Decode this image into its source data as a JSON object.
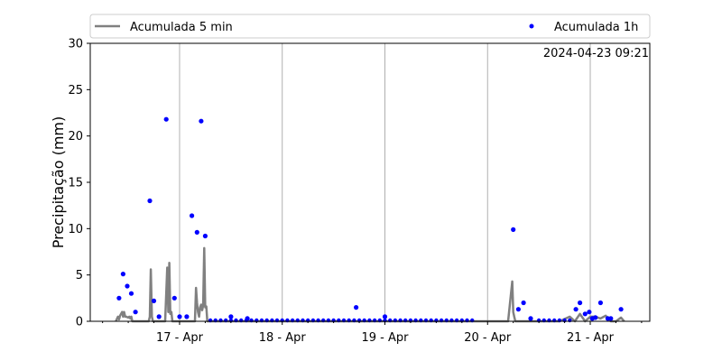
{
  "chart_data": {
    "type": "line",
    "ylabel": "Precipitação (mm)",
    "ylim": [
      0,
      30
    ],
    "yticks": [
      0,
      5,
      10,
      15,
      20,
      25,
      30
    ],
    "xlim": [
      -0.87,
      4.58
    ],
    "xticks": [
      {
        "value": 0,
        "label": "17 - Apr"
      },
      {
        "value": 1,
        "label": "18 - Apr"
      },
      {
        "value": 2,
        "label": "19 - Apr"
      },
      {
        "value": 3,
        "label": "20 - Apr"
      },
      {
        "value": 4,
        "label": "21 - Apr"
      }
    ],
    "grid": "x-major",
    "annotation": "2024-04-23 09:21",
    "legend_position": "top",
    "series": [
      {
        "name": "Acumulada 5 min",
        "kind": "line",
        "color": "#808080",
        "x": [
          -0.62,
          -0.6,
          -0.59,
          -0.58,
          -0.56,
          -0.55,
          -0.54,
          -0.53,
          -0.52,
          -0.5,
          -0.49,
          -0.48,
          -0.47,
          -0.46,
          -0.42,
          -0.3,
          -0.29,
          -0.28,
          -0.27,
          -0.26,
          -0.14,
          -0.13,
          -0.12,
          -0.11,
          -0.1,
          -0.09,
          -0.08,
          -0.07,
          -0.06,
          -0.05,
          0.15,
          0.16,
          0.17,
          0.18,
          0.19,
          0.2,
          0.21,
          0.22,
          0.23,
          0.24,
          0.25,
          0.26,
          0.27,
          0.3,
          1.0,
          2.0,
          2.9,
          3.0,
          3.2,
          3.24,
          3.25,
          3.26,
          3.27,
          3.3,
          3.5,
          3.6,
          3.7,
          3.8,
          3.85,
          3.9,
          3.95,
          4.0,
          4.05,
          4.1,
          4.15,
          4.2,
          4.25,
          4.3,
          4.33
        ],
        "values": [
          0,
          0.5,
          0.2,
          0.6,
          1.0,
          0.5,
          1.0,
          0.5,
          0.5,
          0.4,
          0.5,
          0.3,
          0.5,
          0,
          0,
          0,
          0.5,
          5.6,
          0.5,
          0,
          0,
          3.0,
          5.8,
          1.0,
          6.3,
          0.8,
          1.0,
          0,
          0,
          0,
          0,
          3.6,
          2.0,
          1.0,
          0.5,
          1.5,
          1.8,
          1.2,
          1.7,
          7.9,
          1.5,
          1.6,
          0,
          0,
          0,
          0,
          0,
          0,
          0,
          4.3,
          1.0,
          0.5,
          0,
          0,
          0,
          0,
          0,
          0.5,
          0,
          0.8,
          0,
          0.5,
          0.5,
          0.3,
          0.6,
          0,
          0,
          0.4,
          0
        ]
      },
      {
        "name": "Acumulada 1h",
        "kind": "scatter",
        "color": "#0000ff",
        "x": [
          -0.59,
          -0.55,
          -0.51,
          -0.47,
          -0.43,
          -0.29,
          -0.25,
          -0.2,
          -0.13,
          -0.05,
          0.0,
          0.07,
          0.12,
          0.17,
          0.21,
          0.25,
          0.5,
          0.66,
          1.72,
          2.0,
          3.25,
          3.3,
          3.35,
          3.42,
          3.86,
          3.9,
          3.95,
          3.99,
          4.02,
          4.05,
          4.1,
          4.17,
          4.2,
          4.3
        ],
        "values": [
          2.5,
          5.1,
          3.8,
          3.0,
          1.0,
          13.0,
          2.2,
          0.5,
          21.8,
          2.5,
          0.5,
          0.5,
          11.4,
          9.6,
          21.6,
          9.2,
          0.5,
          0.3,
          1.5,
          0.5,
          9.9,
          1.3,
          2.0,
          0.3,
          1.3,
          2.0,
          0.8,
          1.0,
          0.3,
          0.4,
          2.0,
          0.3,
          0.3,
          1.3
        ]
      }
    ]
  }
}
